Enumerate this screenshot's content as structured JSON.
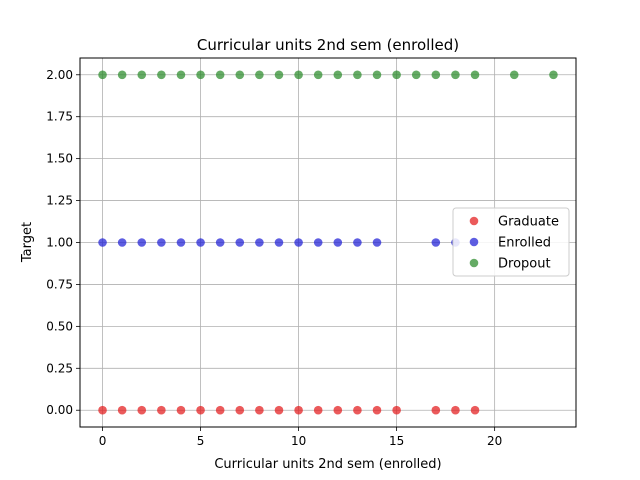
{
  "chart_data": {
    "type": "scatter",
    "title": "Curricular units 2nd sem (enrolled)",
    "xlabel": "Curricular units 2nd sem (enrolled)",
    "ylabel": "Target",
    "xlim": [
      -1.15,
      24.15
    ],
    "ylim": [
      -0.1,
      2.1
    ],
    "x_ticks": [
      0,
      5,
      10,
      15,
      20
    ],
    "y_ticks": [
      0.0,
      0.25,
      0.5,
      0.75,
      1.0,
      1.25,
      1.5,
      1.75,
      2.0
    ],
    "x_tick_labels": [
      "0",
      "5",
      "10",
      "15",
      "20"
    ],
    "y_tick_labels": [
      "0.00",
      "0.25",
      "0.50",
      "0.75",
      "1.00",
      "1.25",
      "1.50",
      "1.75",
      "2.00"
    ],
    "grid": true,
    "legend_position": "center-right",
    "series": [
      {
        "name": "Graduate",
        "color": "#e31a1c",
        "y": 0,
        "x": [
          0,
          1,
          2,
          3,
          4,
          5,
          6,
          7,
          8,
          9,
          10,
          11,
          12,
          13,
          14,
          15,
          17,
          18,
          19
        ]
      },
      {
        "name": "Enrolled",
        "color": "#1f1fd6",
        "y": 1,
        "x": [
          0,
          1,
          2,
          3,
          4,
          5,
          6,
          7,
          8,
          9,
          10,
          11,
          12,
          13,
          14,
          17,
          18
        ]
      },
      {
        "name": "Dropout",
        "color": "#2a8a2a",
        "y": 2,
        "x": [
          0,
          1,
          2,
          3,
          4,
          5,
          6,
          7,
          8,
          9,
          10,
          11,
          12,
          13,
          14,
          15,
          16,
          17,
          18,
          19,
          21,
          23
        ]
      }
    ]
  }
}
